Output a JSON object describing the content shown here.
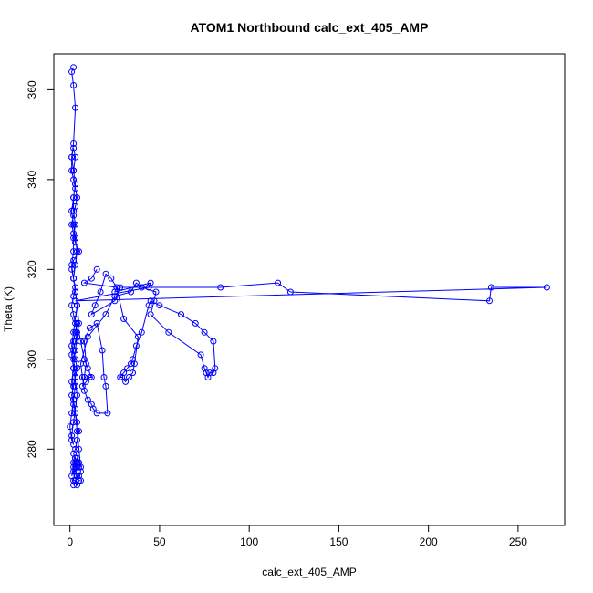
{
  "chart_data": {
    "type": "line",
    "title": "ATOM1 Northbound calc_ext_405_AMP",
    "xlabel": "calc_ext_405_AMP",
    "ylabel": "Theta (K)",
    "xlim": [
      -9,
      276
    ],
    "ylim": [
      263,
      368
    ],
    "x_ticks": [
      0,
      50,
      100,
      150,
      200,
      250
    ],
    "y_ticks": [
      280,
      300,
      320,
      340,
      360
    ],
    "grid": false,
    "series": [
      {
        "color": "#0000ff",
        "marker": "open-circle",
        "x": [
          2,
          1,
          2,
          3,
          2,
          1,
          1,
          2,
          3,
          4,
          3,
          2,
          1,
          2,
          3,
          5,
          2,
          1,
          2,
          3,
          2,
          1,
          2,
          3,
          4,
          3,
          2,
          3,
          4,
          3,
          2,
          1,
          2,
          3,
          4,
          5,
          4,
          3,
          2,
          3,
          4,
          3,
          2,
          1,
          2,
          3,
          4,
          5,
          6,
          4,
          3,
          2,
          3,
          5,
          4,
          3,
          2,
          3,
          4,
          5,
          6,
          5,
          4,
          3,
          2,
          3,
          4,
          5,
          6,
          5,
          4,
          3,
          2,
          1,
          2,
          3,
          4,
          5,
          4,
          3,
          2,
          1,
          2,
          2,
          3,
          2,
          2,
          3,
          2,
          1,
          2,
          3,
          2,
          3,
          2,
          1,
          2,
          3,
          4,
          3,
          2,
          3,
          4,
          3,
          2,
          1,
          2,
          3,
          3,
          2,
          1,
          0,
          1,
          2,
          1,
          2,
          3,
          4,
          3,
          2,
          1,
          2,
          3,
          4,
          6,
          8,
          10,
          12,
          11,
          9,
          7,
          8,
          9,
          8,
          11,
          15,
          18,
          19,
          20,
          21,
          15,
          13,
          12,
          10,
          8,
          7,
          6,
          10,
          20,
          25,
          34,
          37,
          40,
          48,
          47,
          45,
          55,
          73,
          75,
          76,
          77,
          78,
          80,
          81,
          80,
          75,
          70,
          62,
          50,
          45,
          44,
          40,
          37,
          35,
          34,
          32,
          30,
          28,
          29,
          31,
          33,
          35,
          36,
          38,
          30,
          26,
          23,
          20,
          17,
          14,
          12,
          25,
          28,
          84,
          116,
          123,
          234,
          235,
          266,
          3,
          44,
          45,
          25,
          26,
          8,
          12,
          15
        ],
        "y": [
          365,
          364,
          361,
          356,
          348,
          345,
          342,
          340,
          338,
          336,
          334,
          332,
          330,
          328,
          326,
          324,
          322,
          320,
          318,
          316,
          314,
          312,
          310,
          308,
          306,
          304,
          302,
          300,
          298,
          296,
          294,
          292,
          290,
          288,
          286,
          284,
          282,
          280,
          279,
          278,
          277,
          276,
          275,
          274,
          276,
          278,
          277,
          276,
          275,
          274,
          273,
          272,
          273,
          274,
          276,
          278,
          277,
          275,
          274,
          273,
          273,
          273,
          272,
          273,
          273,
          277,
          278,
          277,
          276,
          280,
          284,
          288,
          291,
          295,
          298,
          302,
          305,
          308,
          312,
          315,
          318,
          321,
          324,
          327,
          330,
          333,
          336,
          339,
          342,
          345,
          347,
          345,
          342,
          339,
          336,
          333,
          330,
          327,
          324,
          321,
          318,
          315,
          312,
          309,
          306,
          303,
          300,
          297,
          294,
          291,
          288,
          285,
          282,
          281,
          283,
          286,
          289,
          292,
          295,
          298,
          301,
          304,
          306,
          308,
          304,
          300,
          298,
          296,
          296,
          295,
          294,
          296,
          299,
          304,
          307,
          308,
          302,
          296,
          294,
          288,
          288,
          289,
          290,
          291,
          293,
          296,
          299,
          305,
          310,
          314,
          315,
          317,
          316,
          315,
          313,
          310,
          306,
          301,
          298,
          297,
          296,
          297,
          297,
          298,
          304,
          306,
          308,
          310,
          312,
          313,
          312,
          306,
          303,
          300,
          299,
          298,
          297,
          296,
          296,
          295,
          296,
          297,
          299,
          305,
          309,
          316,
          318,
          319,
          315,
          312,
          310,
          313,
          316,
          316,
          317,
          315,
          313,
          316,
          316,
          313,
          316,
          317,
          315,
          316,
          317,
          318,
          320
        ]
      }
    ]
  }
}
